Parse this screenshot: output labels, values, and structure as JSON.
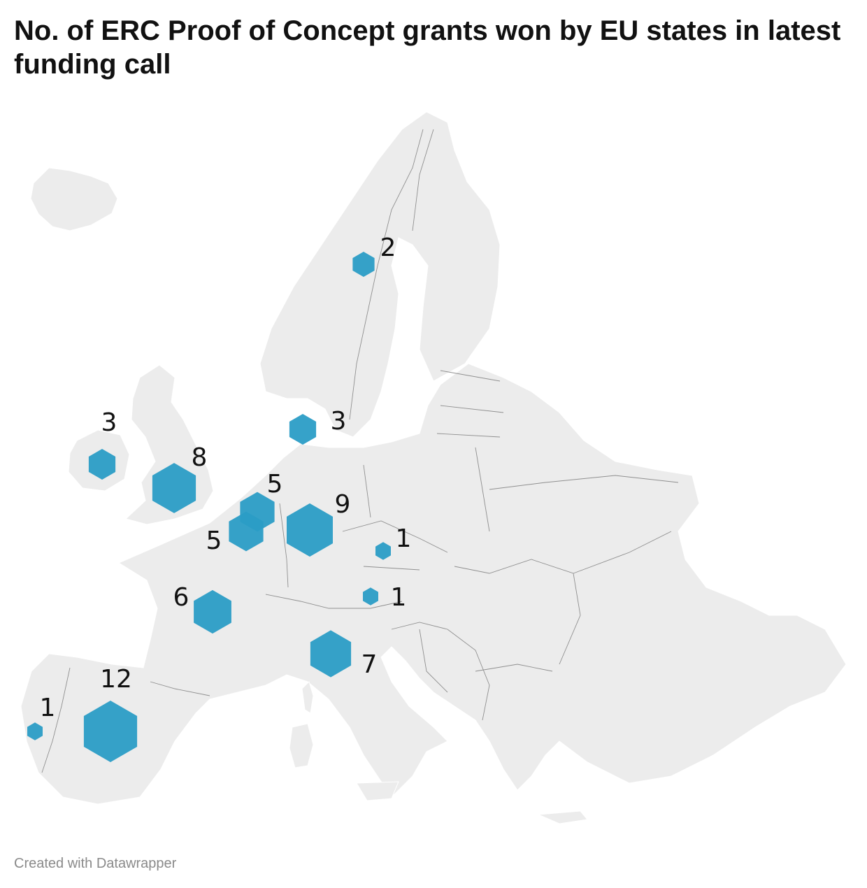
{
  "title": "No. of ERC Proof of Concept grants won by EU states in latest funding call",
  "footer": "Created with Datawrapper",
  "colors": {
    "symbol": "#2b9dc6",
    "land": "#ececec",
    "border": "#8f8f8f"
  },
  "markers": [
    {
      "id": "sweden",
      "value": 2,
      "label": "2"
    },
    {
      "id": "ireland",
      "value": 3,
      "label": "3"
    },
    {
      "id": "denmark",
      "value": 3,
      "label": "3"
    },
    {
      "id": "uk",
      "value": 8,
      "label": "8"
    },
    {
      "id": "netherlands",
      "value": 5,
      "label": "5"
    },
    {
      "id": "belgium",
      "value": 5,
      "label": "5"
    },
    {
      "id": "germany",
      "value": 9,
      "label": "9"
    },
    {
      "id": "czechia",
      "value": 1,
      "label": "1"
    },
    {
      "id": "austria",
      "value": 1,
      "label": "1"
    },
    {
      "id": "france",
      "value": 6,
      "label": "6"
    },
    {
      "id": "italy",
      "value": 7,
      "label": "7"
    },
    {
      "id": "spain",
      "value": 12,
      "label": "12"
    },
    {
      "id": "portugal",
      "value": 1,
      "label": "1"
    }
  ]
}
